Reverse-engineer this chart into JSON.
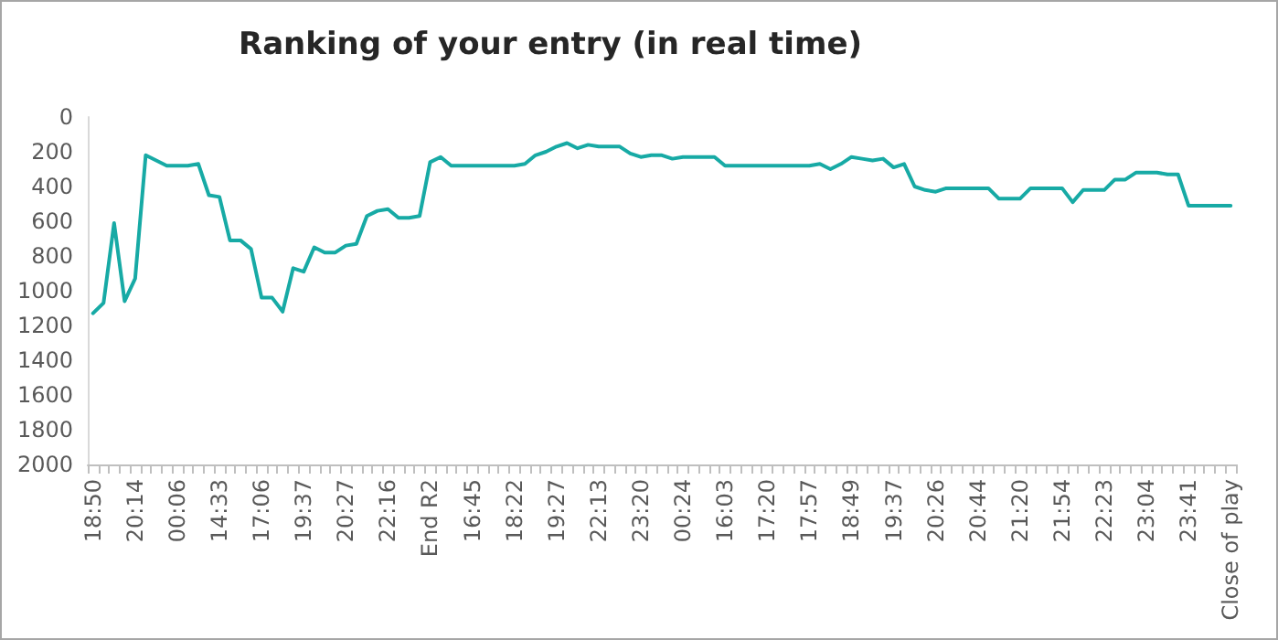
{
  "chart_data": {
    "type": "line",
    "title": "Ranking of your entry (in real time)",
    "categories": [
      "18:50",
      null,
      null,
      null,
      "20:14",
      null,
      null,
      null,
      "00:06",
      null,
      null,
      null,
      "14:33",
      null,
      null,
      null,
      "17:06",
      null,
      null,
      null,
      "19:37",
      null,
      null,
      null,
      "20:27",
      null,
      null,
      null,
      "22:16",
      null,
      null,
      null,
      "End R2",
      null,
      null,
      null,
      "16:45",
      null,
      null,
      null,
      "18:22",
      null,
      null,
      null,
      "19:27",
      null,
      null,
      null,
      "22:13",
      null,
      null,
      null,
      "23:20",
      null,
      null,
      null,
      "00:24",
      null,
      null,
      null,
      "16:03",
      null,
      null,
      null,
      "17:20",
      null,
      null,
      null,
      "17:57",
      null,
      null,
      null,
      "18:49",
      null,
      null,
      null,
      "19:37",
      null,
      null,
      null,
      "20:26",
      null,
      null,
      null,
      "20:44",
      null,
      null,
      null,
      "21:20",
      null,
      null,
      null,
      "21:54",
      null,
      null,
      null,
      "22:23",
      null,
      null,
      null,
      "23:04",
      null,
      null,
      null,
      "23:41",
      null,
      null,
      null,
      "Close of play"
    ],
    "series": [
      {
        "color": "#17aaa5",
        "values": [
          1130,
          1070,
          610,
          1060,
          930,
          220,
          250,
          280,
          280,
          280,
          270,
          450,
          460,
          710,
          710,
          760,
          1040,
          1040,
          1120,
          870,
          890,
          750,
          780,
          780,
          740,
          730,
          570,
          540,
          530,
          580,
          580,
          570,
          260,
          230,
          280,
          280,
          280,
          280,
          280,
          280,
          280,
          270,
          220,
          200,
          170,
          150,
          180,
          160,
          170,
          170,
          170,
          210,
          230,
          220,
          220,
          240,
          230,
          230,
          230,
          230,
          280,
          280,
          280,
          280,
          280,
          280,
          280,
          280,
          280,
          270,
          300,
          270,
          230,
          240,
          250,
          240,
          290,
          270,
          400,
          420,
          430,
          410,
          410,
          410,
          410,
          410,
          470,
          470,
          470,
          410,
          410,
          410,
          410,
          490,
          420,
          420,
          420,
          360,
          360,
          320,
          320,
          320,
          330,
          330,
          510,
          510,
          510,
          510,
          510
        ]
      }
    ],
    "ylim": [
      2000,
      0
    ],
    "yticks": [
      0,
      200,
      400,
      600,
      800,
      1000,
      1200,
      1400,
      1600,
      1800,
      2000
    ],
    "grid": false,
    "marker": "none",
    "line_style": "solid"
  }
}
